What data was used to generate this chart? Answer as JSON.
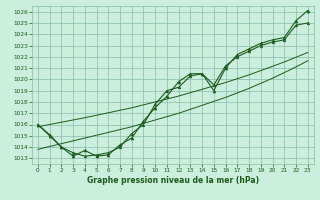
{
  "title": "Graphe pression niveau de la mer (hPa)",
  "bg_color": "#cceedd",
  "grid_color": "#88bbaa",
  "line_color": "#1a5c1a",
  "xlim": [
    -0.5,
    23.5
  ],
  "ylim": [
    1012.5,
    1026.5
  ],
  "yticks": [
    1013,
    1014,
    1015,
    1016,
    1017,
    1018,
    1019,
    1020,
    1021,
    1022,
    1023,
    1024,
    1025,
    1026
  ],
  "xticks": [
    0,
    1,
    2,
    3,
    4,
    5,
    6,
    7,
    8,
    9,
    10,
    11,
    12,
    13,
    14,
    15,
    16,
    17,
    18,
    19,
    20,
    21,
    22,
    23
  ],
  "hours": [
    0,
    1,
    2,
    3,
    4,
    5,
    6,
    7,
    8,
    9,
    10,
    11,
    12,
    13,
    14,
    15,
    16,
    17,
    18,
    19,
    20,
    21,
    22,
    23
  ],
  "pressure_main": [
    1016.0,
    1015.0,
    1014.0,
    1013.2,
    1013.7,
    1013.2,
    1013.3,
    1014.2,
    1014.8,
    1016.3,
    1017.5,
    1018.5,
    1019.8,
    1020.5,
    1020.5,
    1019.0,
    1021.0,
    1022.2,
    1022.7,
    1023.2,
    1023.5,
    1023.7,
    1025.2,
    1026.1
  ],
  "pressure_alt": [
    1016.0,
    1015.1,
    1014.0,
    1013.5,
    1013.2,
    1013.3,
    1013.5,
    1014.0,
    1015.2,
    1016.0,
    1017.8,
    1019.0,
    1019.3,
    1020.3,
    1020.5,
    1019.5,
    1021.2,
    1022.0,
    1022.5,
    1023.0,
    1023.3,
    1023.5,
    1024.8,
    1025.0
  ],
  "trend_low": [
    1013.8,
    1014.05,
    1014.3,
    1014.55,
    1014.8,
    1015.05,
    1015.3,
    1015.55,
    1015.8,
    1016.1,
    1016.4,
    1016.7,
    1017.0,
    1017.35,
    1017.7,
    1018.05,
    1018.4,
    1018.8,
    1019.2,
    1019.65,
    1020.1,
    1020.6,
    1021.1,
    1021.65
  ],
  "trend_high": [
    1015.8,
    1016.0,
    1016.2,
    1016.4,
    1016.6,
    1016.82,
    1017.04,
    1017.26,
    1017.48,
    1017.74,
    1018.0,
    1018.26,
    1018.52,
    1018.82,
    1019.12,
    1019.42,
    1019.72,
    1020.06,
    1020.4,
    1020.78,
    1021.16,
    1021.54,
    1021.96,
    1022.38
  ]
}
